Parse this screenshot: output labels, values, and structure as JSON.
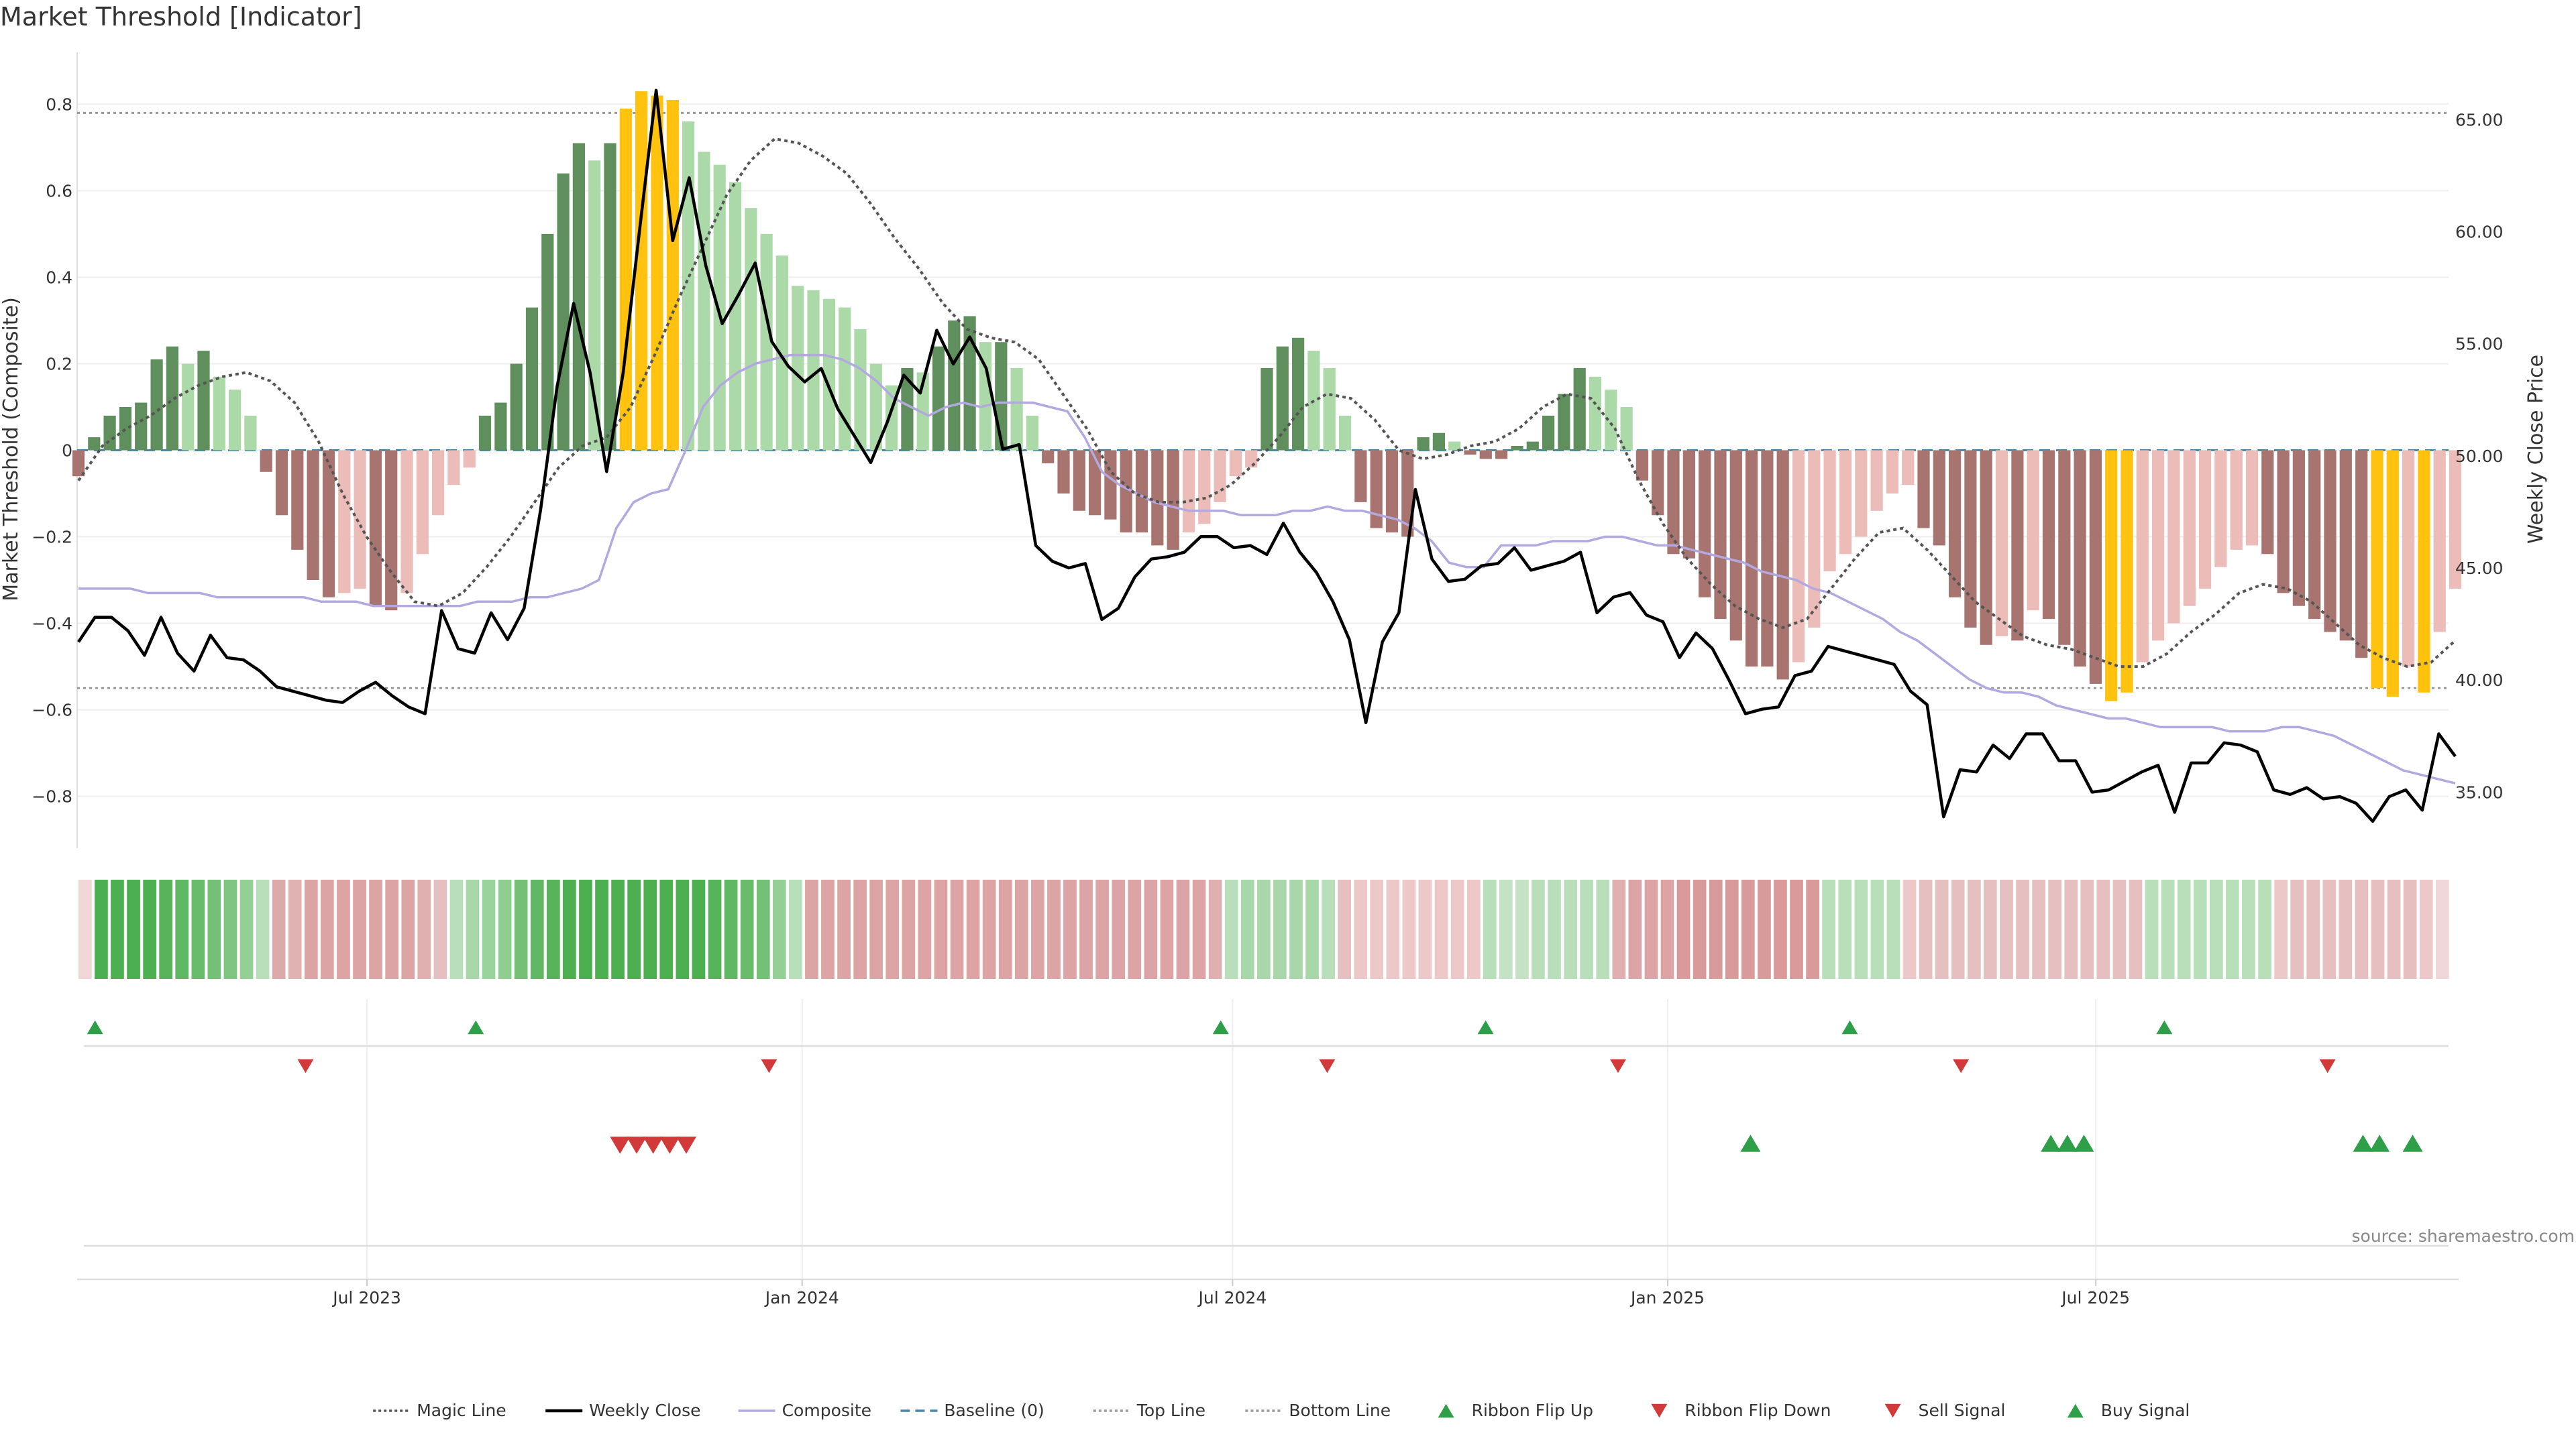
{
  "chart_data": {
    "type": "bar",
    "title": "Market Threshold [Indicator]",
    "ylabel_left": "Market Threshold (Composite)",
    "ylabel_right": "Weekly Close Price",
    "source": "source: sharemaestro.com",
    "x_start": "2023-03-01",
    "x_end": "2025-11-30",
    "x_ticks": [
      {
        "date": "2023-07-01",
        "label": "Jul 2023"
      },
      {
        "date": "2024-01-01",
        "label": "Jan 2024"
      },
      {
        "date": "2024-07-01",
        "label": "Jul 2024"
      },
      {
        "date": "2025-01-01",
        "label": "Jan 2025"
      },
      {
        "date": "2025-07-01",
        "label": "Jul 2025"
      }
    ],
    "y_left": {
      "min": -0.92,
      "max": 0.92,
      "ticks": [
        0.8,
        0.6,
        0.4,
        0.2,
        0,
        -0.2,
        -0.4,
        -0.6,
        -0.8
      ],
      "tick_labels": [
        "0.8",
        "0.6",
        "0.4",
        "0.2",
        "0",
        "−0.2",
        "−0.4",
        "−0.6",
        "−0.8"
      ]
    },
    "y_right": {
      "min": 32.5,
      "max": 68.0,
      "ticks": [
        65,
        60,
        55,
        50,
        45,
        40,
        35
      ],
      "tick_labels": [
        "65.00",
        "60.00",
        "55.00",
        "50.00",
        "45.00",
        "40.00",
        "35.00"
      ]
    },
    "top_line": 0.78,
    "bottom_line": -0.55,
    "composite_bars": [
      -0.06,
      0.03,
      0.08,
      0.1,
      0.11,
      0.21,
      0.24,
      0.2,
      0.23,
      0.17,
      0.14,
      0.08,
      -0.05,
      -0.15,
      -0.23,
      -0.3,
      -0.34,
      -0.33,
      -0.32,
      -0.36,
      -0.37,
      -0.33,
      -0.24,
      -0.15,
      -0.08,
      -0.04,
      0.08,
      0.11,
      0.2,
      0.33,
      0.5,
      0.64,
      0.71,
      0.67,
      0.71,
      0.79,
      0.83,
      0.82,
      0.81,
      0.76,
      0.69,
      0.66,
      0.62,
      0.56,
      0.5,
      0.45,
      0.38,
      0.37,
      0.35,
      0.33,
      0.28,
      0.2,
      0.15,
      0.19,
      0.18,
      0.24,
      0.3,
      0.31,
      0.25,
      0.25,
      0.19,
      0.08,
      -0.03,
      -0.1,
      -0.14,
      -0.15,
      -0.16,
      -0.19,
      -0.19,
      -0.22,
      -0.23,
      -0.19,
      -0.17,
      -0.12,
      -0.06,
      -0.04,
      0.19,
      0.24,
      0.26,
      0.23,
      0.19,
      0.08,
      -0.12,
      -0.18,
      -0.19,
      -0.2,
      0.03,
      0.04,
      0.02,
      -0.01,
      -0.02,
      -0.02,
      0.01,
      0.02,
      0.08,
      0.13,
      0.19,
      0.17,
      0.14,
      0.1,
      -0.07,
      -0.15,
      -0.24,
      -0.25,
      -0.34,
      -0.39,
      -0.44,
      -0.5,
      -0.5,
      -0.53,
      -0.49,
      -0.41,
      -0.28,
      -0.24,
      -0.2,
      -0.14,
      -0.1,
      -0.08,
      -0.18,
      -0.22,
      -0.34,
      -0.41,
      -0.45,
      -0.43,
      -0.44,
      -0.37,
      -0.39,
      -0.45,
      -0.5,
      -0.54,
      -0.58,
      -0.56,
      -0.49,
      -0.44,
      -0.4,
      -0.36,
      -0.32,
      -0.27,
      -0.23,
      -0.22,
      -0.24,
      -0.33,
      -0.36,
      -0.39,
      -0.42,
      -0.44,
      -0.48,
      -0.55,
      -0.57,
      -0.5,
      -0.56,
      -0.42,
      -0.32
    ],
    "weekly_close": [
      41.7,
      42.8,
      42.8,
      42.2,
      41.1,
      42.8,
      41.2,
      40.4,
      42.0,
      41.0,
      40.9,
      40.4,
      39.7,
      39.5,
      39.3,
      39.1,
      39.0,
      39.5,
      39.9,
      39.3,
      38.8,
      38.5,
      43.1,
      41.4,
      41.2,
      43.0,
      41.8,
      43.2,
      47.6,
      53.1,
      56.8,
      53.7,
      49.3,
      53.7,
      60.1,
      66.3,
      59.6,
      62.4,
      58.5,
      55.9,
      57.2,
      58.6,
      55.1,
      54.0,
      53.3,
      53.9,
      52.1,
      50.9,
      49.7,
      51.5,
      53.6,
      52.8,
      55.6,
      54.1,
      55.3,
      53.9,
      50.3,
      50.5,
      46.0,
      45.3,
      45.0,
      45.2,
      42.7,
      43.2,
      44.6,
      45.4,
      45.5,
      45.7,
      46.4,
      46.4,
      45.9,
      46.0,
      45.6,
      47.0,
      45.7,
      44.8,
      43.5,
      41.8,
      38.1,
      41.7,
      43.0,
      48.5,
      45.4,
      44.4,
      44.5,
      45.1,
      45.2,
      45.9,
      44.9,
      45.1,
      45.3,
      45.7,
      43.0,
      43.7,
      43.9,
      42.9,
      42.6,
      41.0,
      42.1,
      41.4,
      40.0,
      38.5,
      38.7,
      38.8,
      40.2,
      40.4,
      41.5,
      41.3,
      41.1,
      40.9,
      40.7,
      39.5,
      38.9,
      33.9,
      36.0,
      35.9,
      37.1,
      36.5,
      37.6,
      37.6,
      36.4,
      36.4,
      35.0,
      35.1,
      35.5,
      35.9,
      36.2,
      34.1,
      36.3,
      36.3,
      37.2,
      37.1,
      36.8,
      35.1,
      34.9,
      35.2,
      34.7,
      34.8,
      34.5,
      33.7,
      34.8,
      35.1,
      34.2,
      37.6,
      36.6
    ],
    "composite_line": [
      -0.32,
      -0.32,
      -0.32,
      -0.32,
      -0.33,
      -0.33,
      -0.33,
      -0.33,
      -0.34,
      -0.34,
      -0.34,
      -0.34,
      -0.34,
      -0.34,
      -0.35,
      -0.35,
      -0.35,
      -0.36,
      -0.36,
      -0.36,
      -0.36,
      -0.36,
      -0.36,
      -0.35,
      -0.35,
      -0.35,
      -0.34,
      -0.34,
      -0.33,
      -0.32,
      -0.3,
      -0.18,
      -0.12,
      -0.1,
      -0.09,
      0.0,
      0.1,
      0.15,
      0.18,
      0.2,
      0.21,
      0.22,
      0.22,
      0.22,
      0.21,
      0.19,
      0.16,
      0.12,
      0.1,
      0.08,
      0.1,
      0.11,
      0.1,
      0.11,
      0.11,
      0.11,
      0.1,
      0.09,
      0.03,
      -0.05,
      -0.08,
      -0.1,
      -0.12,
      -0.13,
      -0.14,
      -0.14,
      -0.14,
      -0.15,
      -0.15,
      -0.15,
      -0.14,
      -0.14,
      -0.13,
      -0.14,
      -0.14,
      -0.15,
      -0.16,
      -0.18,
      -0.21,
      -0.26,
      -0.27,
      -0.27,
      -0.22,
      -0.22,
      -0.22,
      -0.21,
      -0.21,
      -0.21,
      -0.2,
      -0.2,
      -0.21,
      -0.22,
      -0.22,
      -0.23,
      -0.24,
      -0.25,
      -0.26,
      -0.28,
      -0.29,
      -0.3,
      -0.32,
      -0.33,
      -0.35,
      -0.37,
      -0.39,
      -0.42,
      -0.44,
      -0.47,
      -0.5,
      -0.53,
      -0.55,
      -0.56,
      -0.56,
      -0.57,
      -0.59,
      -0.6,
      -0.61,
      -0.62,
      -0.62,
      -0.63,
      -0.64,
      -0.64,
      -0.64,
      -0.64,
      -0.65,
      -0.65,
      -0.65,
      -0.64,
      -0.64,
      -0.65,
      -0.66,
      -0.68,
      -0.7,
      -0.72,
      -0.74,
      -0.75,
      -0.76,
      -0.77
    ],
    "magic_line": [
      -0.07,
      0.01,
      0.05,
      0.08,
      0.12,
      0.15,
      0.17,
      0.18,
      0.16,
      0.11,
      0.02,
      -0.1,
      -0.2,
      -0.28,
      -0.35,
      -0.36,
      -0.33,
      -0.27,
      -0.2,
      -0.12,
      -0.04,
      0.01,
      0.03,
      0.1,
      0.22,
      0.35,
      0.47,
      0.59,
      0.67,
      0.72,
      0.71,
      0.68,
      0.64,
      0.57,
      0.49,
      0.42,
      0.34,
      0.28,
      0.26,
      0.25,
      0.21,
      0.13,
      0.05,
      -0.05,
      -0.1,
      -0.12,
      -0.12,
      -0.11,
      -0.08,
      -0.03,
      0.03,
      0.1,
      0.13,
      0.12,
      0.07,
      0.0,
      -0.02,
      -0.01,
      0.01,
      0.02,
      0.05,
      0.1,
      0.13,
      0.12,
      0.05,
      -0.07,
      -0.17,
      -0.25,
      -0.31,
      -0.36,
      -0.39,
      -0.41,
      -0.39,
      -0.32,
      -0.25,
      -0.19,
      -0.18,
      -0.23,
      -0.29,
      -0.35,
      -0.39,
      -0.43,
      -0.45,
      -0.46,
      -0.48,
      -0.5,
      -0.5,
      -0.47,
      -0.42,
      -0.38,
      -0.33,
      -0.31,
      -0.32,
      -0.35,
      -0.4,
      -0.45,
      -0.48,
      -0.5,
      -0.49,
      -0.44
    ],
    "ribbon": [
      "#f0d6d6",
      "#4caf50",
      "#4caf50",
      "#4caf50",
      "#4caf50",
      "#56b35a",
      "#60b864",
      "#6abc6d",
      "#74c077",
      "#7ec580",
      "#94cf96",
      "#b8dfba",
      "#dcaaaa",
      "#e0b2b2",
      "#dca4a4",
      "#dca4a4",
      "#dca4a4",
      "#dca4a4",
      "#dca4a4",
      "#dca4a4",
      "#dca4a4",
      "#e0b0b0",
      "#e6c0c0",
      "#b8dfba",
      "#a8d8aa",
      "#9ad39c",
      "#8ecf90",
      "#74c077",
      "#60b864",
      "#56b35a",
      "#4caf50",
      "#4caf50",
      "#4caf50",
      "#4caf50",
      "#4caf50",
      "#4caf50",
      "#4caf50",
      "#4caf50",
      "#4caf50",
      "#56b35a",
      "#60b864",
      "#6abc6d",
      "#74c077",
      "#94cf96",
      "#b8dfba",
      "#dca4a4",
      "#dca4a4",
      "#dca4a4",
      "#dca4a4",
      "#dca4a4",
      "#dca4a4",
      "#dca4a4",
      "#dca4a4",
      "#dca4a4",
      "#dca4a4",
      "#dca4a4",
      "#dca4a4",
      "#dca4a4",
      "#dca4a4",
      "#dca4a4",
      "#dca4a4",
      "#dca4a4",
      "#dca4a4",
      "#dca4a4",
      "#dca4a4",
      "#dca4a4",
      "#dca4a4",
      "#dca4a4",
      "#dca4a4",
      "#dca4a4",
      "#e0b0b0",
      "#b8dfba",
      "#a8d8aa",
      "#a8d8aa",
      "#a8d8aa",
      "#a8d8aa",
      "#a8d8aa",
      "#b8dfba",
      "#e6c0c0",
      "#ecc8c8",
      "#ecc8c8",
      "#ecc8c8",
      "#ecc8c8",
      "#ecc8c8",
      "#ecc8c8",
      "#ecc8c8",
      "#ecc8c8",
      "#b8dfba",
      "#c4e3c5",
      "#c4e3c5",
      "#b8dfba",
      "#b8dfba",
      "#b8dfba",
      "#b8dfba",
      "#b8dfba",
      "#e0b0b0",
      "#dca4a4",
      "#dca4a4",
      "#dca4a4",
      "#d89a9a",
      "#d89a9a",
      "#d89a9a",
      "#d89a9a",
      "#d89a9a",
      "#d89a9a",
      "#d89a9a",
      "#d89a9a",
      "#d89a9a",
      "#b8dfba",
      "#b8dfba",
      "#b8dfba",
      "#b8dfba",
      "#b8dfba",
      "#ecc8c8",
      "#e6c0c0",
      "#e6c0c0",
      "#e6c0c0",
      "#e6c0c0",
      "#e6c0c0",
      "#e6c0c0",
      "#e6c0c0",
      "#e6c0c0",
      "#e6c0c0",
      "#e6c0c0",
      "#e6c0c0",
      "#e6c0c0",
      "#e6c0c0",
      "#e6c0c0",
      "#b8dfba",
      "#b8dfba",
      "#b8dfba",
      "#b8dfba",
      "#b8dfba",
      "#b8dfba",
      "#b8dfba",
      "#b8dfba",
      "#ecc8c8",
      "#e6c0c0",
      "#e6c0c0",
      "#e6c0c0",
      "#e6c0c0",
      "#e6c0c0",
      "#e6c0c0",
      "#e6c0c0",
      "#e6c0c0",
      "#ecc8c8",
      "#f0d6d6"
    ],
    "ribbon_flip_up": [
      "2023-03-08",
      "2023-08-16",
      "2024-06-26",
      "2024-10-16",
      "2025-03-19",
      "2025-07-30"
    ],
    "ribbon_flip_down": [
      "2023-06-05",
      "2023-12-18",
      "2024-08-10",
      "2024-12-11",
      "2025-05-05",
      "2025-10-07"
    ],
    "sell_signals": [
      "2023-10-16",
      "2023-10-23",
      "2023-10-30",
      "2023-11-06",
      "2023-11-13"
    ],
    "buy_signals": [
      "2025-02-05",
      "2025-06-12",
      "2025-06-19",
      "2025-06-26",
      "2025-10-22",
      "2025-10-29",
      "2025-11-12"
    ],
    "legend": [
      {
        "label": "Magic Line",
        "kind": "line",
        "color": "#555555",
        "dash": "4,4"
      },
      {
        "label": "Weekly Close",
        "kind": "line",
        "color": "#000000",
        "dash": ""
      },
      {
        "label": "Composite",
        "kind": "line",
        "color": "#b3a8e0",
        "dash": ""
      },
      {
        "label": "Baseline (0)",
        "kind": "line",
        "color": "#4a86a8",
        "dash": "14,8"
      },
      {
        "label": "Top Line",
        "kind": "line",
        "color": "#999999",
        "dash": "4,4"
      },
      {
        "label": "Bottom Line",
        "kind": "line",
        "color": "#999999",
        "dash": "4,4"
      },
      {
        "label": "Ribbon Flip Up",
        "kind": "up",
        "color": "#2e9e48"
      },
      {
        "label": "Ribbon Flip Down",
        "kind": "down",
        "color": "#d23a3a"
      },
      {
        "label": "Sell Signal",
        "kind": "down",
        "color": "#d23a3a"
      },
      {
        "label": "Buy Signal",
        "kind": "up",
        "color": "#2e9e48"
      }
    ],
    "colors": {
      "strong_up": "#5f8f5d",
      "weak_up": "#acd9a8",
      "strong_down": "#a87470",
      "weak_down": "#ecbcb8",
      "extreme": "#ffc20e",
      "magic": "#555555",
      "close": "#000000",
      "composite_line": "#b3a8e0",
      "baseline": "#4a86a8",
      "threshold": "#999999",
      "up_marker": "#2e9e48",
      "down_marker": "#d23a3a"
    }
  }
}
